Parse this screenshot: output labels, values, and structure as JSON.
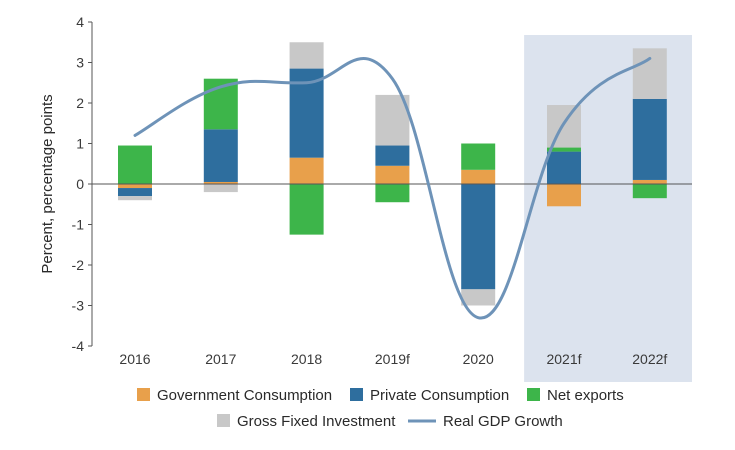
{
  "chart_data": {
    "type": "bar",
    "stacked": true,
    "ylabel": "Percent, percentage points",
    "ylim": [
      -4,
      4
    ],
    "yticks": [
      "4",
      "3",
      "2",
      "1",
      "0",
      "-1",
      "-2",
      "-3",
      "-4"
    ],
    "ytick_values": [
      4,
      3,
      2,
      1,
      0,
      -1,
      -2,
      -3,
      -4
    ],
    "categories": [
      "2016",
      "2017",
      "2018",
      "2019f",
      "2020",
      "2021f",
      "2022f"
    ],
    "forecast_shaded_categories": [
      "2021f",
      "2022f"
    ],
    "series": [
      {
        "name": "Government Consumption",
        "color": "#E8A04B",
        "values": [
          -0.1,
          0.05,
          0.65,
          0.45,
          0.35,
          -0.55,
          0.1
        ]
      },
      {
        "name": "Private Consumption",
        "color": "#2E6E9E",
        "values": [
          -0.2,
          1.3,
          2.2,
          0.5,
          -2.6,
          0.8,
          2.0
        ]
      },
      {
        "name": "Net exports",
        "color": "#3DB54A",
        "values": [
          0.95,
          1.25,
          -1.25,
          -0.45,
          0.65,
          0.1,
          -0.35
        ]
      },
      {
        "name": "Gross Fixed Investment",
        "color": "#C8C8C8",
        "values": [
          -0.1,
          -0.2,
          0.65,
          1.25,
          -0.4,
          1.05,
          1.25
        ]
      }
    ],
    "line_series": {
      "name": "Real GDP Growth",
      "color": "#6E93B8",
      "values": [
        1.2,
        2.4,
        2.5,
        2.6,
        -3.3,
        1.5,
        3.1
      ]
    },
    "legend": {
      "position": "bottom",
      "items": [
        {
          "label": "Government Consumption",
          "kind": "box",
          "color": "#E8A04B"
        },
        {
          "label": "Private Consumption",
          "kind": "box",
          "color": "#2E6E9E"
        },
        {
          "label": "Net exports",
          "kind": "box",
          "color": "#3DB54A"
        },
        {
          "label": "Gross Fixed Investment",
          "kind": "box",
          "color": "#C8C8C8"
        },
        {
          "label": "Real GDP Growth",
          "kind": "line",
          "color": "#6E93B8"
        }
      ]
    },
    "colors": {
      "shade": "#DCE3EE",
      "axis": "#555555"
    }
  }
}
